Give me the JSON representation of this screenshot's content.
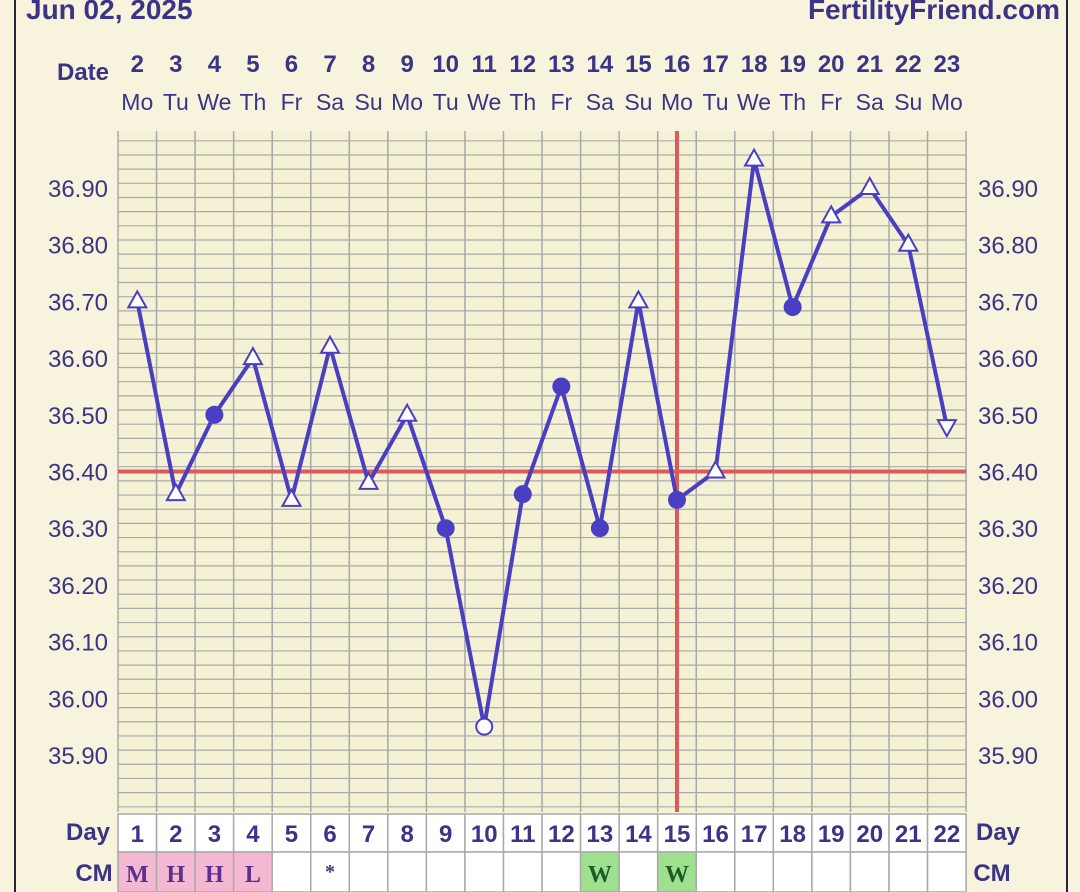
{
  "header": {
    "date": "Jun 02, 2025",
    "site": "FertilityFriend.com"
  },
  "labels": {
    "date_row": "Date",
    "day_row": "Day",
    "cm_row": "CM"
  },
  "colors": {
    "line": "#4a3fc2",
    "coverline": "#de5a5a",
    "grid": "#a9a9a9",
    "plot_bg": "#f4f1d4",
    "cm_pink": "#f5b8d3",
    "cm_green": "#9fe08f"
  },
  "chart_data": {
    "type": "line",
    "x_dates": [
      "2",
      "3",
      "4",
      "5",
      "6",
      "7",
      "8",
      "9",
      "10",
      "11",
      "12",
      "13",
      "14",
      "15",
      "16",
      "17",
      "18",
      "19",
      "20",
      "21",
      "22",
      "23"
    ],
    "x_weekdays": [
      "Mo",
      "Tu",
      "We",
      "Th",
      "Fr",
      "Sa",
      "Su",
      "Mo",
      "Tu",
      "We",
      "Th",
      "Fr",
      "Sa",
      "Su",
      "Mo",
      "Tu",
      "We",
      "Th",
      "Fr",
      "Sa",
      "Su",
      "Mo"
    ],
    "cycle_days": [
      "1",
      "2",
      "3",
      "4",
      "5",
      "6",
      "7",
      "8",
      "9",
      "10",
      "11",
      "12",
      "13",
      "14",
      "15",
      "16",
      "17",
      "18",
      "19",
      "20",
      "21",
      "22"
    ],
    "y_ticks": [
      "36.90",
      "36.80",
      "36.70",
      "36.60",
      "36.50",
      "36.40",
      "36.30",
      "36.20",
      "36.10",
      "36.00",
      "35.90"
    ],
    "ylim": [
      35.84,
      37.0
    ],
    "coverline": 36.4,
    "ovulation_cycle_day": 15,
    "series": [
      {
        "values": [
          36.7,
          36.36,
          36.5,
          36.6,
          36.35,
          36.62,
          36.38,
          36.5,
          36.3,
          35.95,
          36.36,
          36.55,
          36.3,
          36.7,
          36.35,
          36.4,
          36.95,
          36.69,
          36.85,
          36.9,
          36.8,
          36.48
        ],
        "markers": [
          "up",
          "up",
          "dot",
          "up",
          "up",
          "up",
          "up",
          "up",
          "dot",
          "open",
          "dot",
          "dot",
          "dot",
          "up",
          "dot",
          "up",
          "up",
          "dot",
          "up",
          "up",
          "up",
          "down"
        ]
      }
    ],
    "cm": [
      "M",
      "H",
      "H",
      "L",
      "",
      "*",
      "",
      "",
      "",
      "",
      "",
      "",
      "W",
      "",
      "W",
      "",
      "",
      "",
      "",
      "",
      "",
      ""
    ],
    "cm_color": [
      "pink",
      "pink",
      "pink",
      "pink",
      "",
      "",
      "",
      "",
      "",
      "",
      "",
      "",
      "green",
      "",
      "green",
      "",
      "",
      "",
      "",
      "",
      "",
      ""
    ]
  }
}
